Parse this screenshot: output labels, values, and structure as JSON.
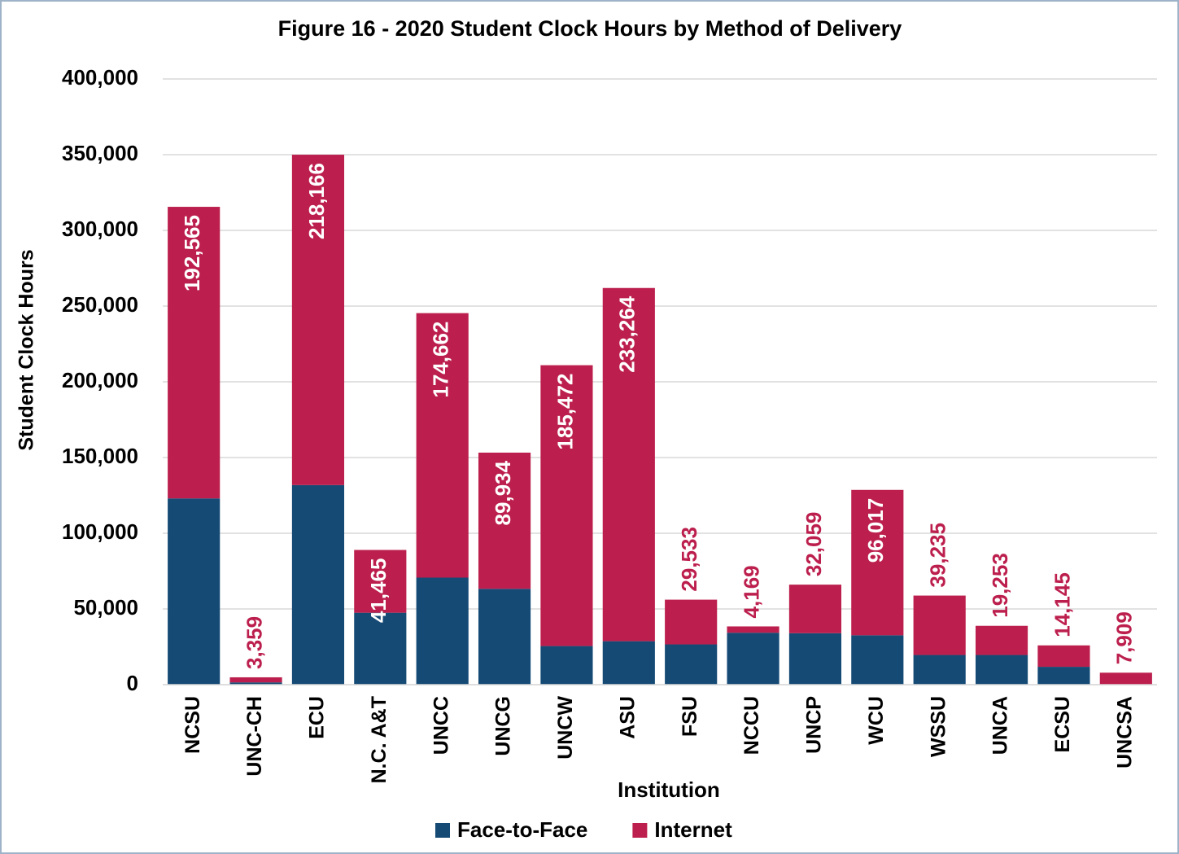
{
  "chart_data": {
    "type": "stacked-bar",
    "title": "Figure 16 - 2020 Student Clock Hours by Method of Delivery",
    "x_label": "Institution",
    "y_label": "Student Clock Hours",
    "categories": [
      "NCSU",
      "UNC-CH",
      "ECU",
      "N.C. A&T",
      "UNCC",
      "UNCG",
      "UNCW",
      "ASU",
      "FSU",
      "NCCU",
      "UNCP",
      "WCU",
      "WSSU",
      "UNCA",
      "ECSU",
      "UNCSA"
    ],
    "series": [
      {
        "name": "Face-to-Face",
        "color": "#154a75",
        "values": [
          123000,
          1500,
          131800,
          47500,
          70700,
          63300,
          25500,
          28700,
          26600,
          34300,
          34000,
          32600,
          19600,
          19600,
          11800,
          0
        ]
      },
      {
        "name": "Internet",
        "color": "#bc1f4d",
        "values": [
          192565,
          3359,
          218166,
          41465,
          174662,
          89934,
          185472,
          233264,
          29533,
          4169,
          32059,
          96017,
          39235,
          19253,
          14145,
          7909
        ],
        "value_labels": [
          "192,565",
          "3,359",
          "218,166",
          "41,465",
          "174,662",
          "89,934",
          "185,472",
          "233,264",
          "29,533",
          "4,169",
          "32,059",
          "96,017",
          "39,235",
          "19,253",
          "14,145",
          "7,909"
        ]
      }
    ],
    "ylim": [
      0,
      400000
    ],
    "yticks": [
      0,
      {
        "value": 50000,
        "label": "50,000"
      },
      {
        "value": 100000,
        "label": "100,000"
      },
      {
        "value": 150000,
        "label": "150,000"
      },
      {
        "value": 200000,
        "label": "200,000"
      },
      {
        "value": 250000,
        "label": "250,000"
      },
      {
        "value": 300000,
        "label": "300,000"
      },
      {
        "value": 350000,
        "label": "350,000"
      },
      {
        "value": 400000,
        "label": "400,000"
      }
    ],
    "grid": true,
    "legend": "bottom"
  }
}
